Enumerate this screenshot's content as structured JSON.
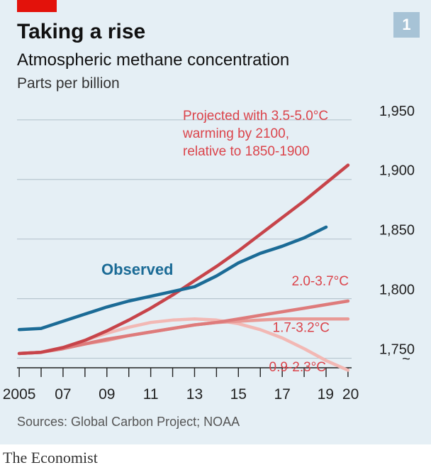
{
  "header": {
    "title": "Taking a rise",
    "subtitle": "Atmospheric methane concentration",
    "unit": "Parts per billion",
    "badge": "1"
  },
  "footer": {
    "source": "Sources: Global Carbon Project; NOAA",
    "brand": "The Economist"
  },
  "colors": {
    "observed": "#1b6b96",
    "projected_high": "#c7444a",
    "projected_mid": "#de7b7b",
    "projected_low": "#e89a96",
    "projected_lowest": "#f2b8b4",
    "label_red": "#db444b",
    "background": "#e5eff5",
    "grid": "#b7c6cf",
    "brand_red": "#e3120b"
  },
  "chart_data": {
    "type": "line",
    "x_tick_labels": [
      "2005",
      "07",
      "09",
      "11",
      "13",
      "15",
      "17",
      "19",
      "20"
    ],
    "x_tick_years": [
      2005,
      2007,
      2009,
      2011,
      2013,
      2015,
      2017,
      2019,
      2020
    ],
    "y_ticks": [
      1750,
      1800,
      1850,
      1900,
      1950
    ],
    "y_tick_labels": [
      "1,750",
      "1,800",
      "1,850",
      "1,900",
      "1,950"
    ],
    "xlim": [
      2004.9,
      2020.1
    ],
    "ylim": [
      1742,
      1960
    ],
    "axis_break_symbol": "~",
    "series": [
      {
        "name": "Projected with 3.5-5.0°C warming by 2100, relative to 1850-1900",
        "color_key": "projected_high",
        "x": [
          2005,
          2006,
          2007,
          2008,
          2009,
          2010,
          2011,
          2012,
          2013,
          2014,
          2015,
          2016,
          2017,
          2018,
          2019,
          2020
        ],
        "values": [
          1754,
          1755,
          1759,
          1765,
          1773,
          1782,
          1792,
          1803,
          1815,
          1827,
          1840,
          1854,
          1868,
          1882,
          1897,
          1912
        ]
      },
      {
        "name": "2.0-3.7°C",
        "color_key": "projected_mid",
        "x": [
          2005,
          2006,
          2007,
          2008,
          2009,
          2010,
          2011,
          2012,
          2013,
          2014,
          2015,
          2016,
          2017,
          2018,
          2019,
          2020
        ],
        "values": [
          1754,
          1755,
          1758,
          1762,
          1766,
          1769,
          1772,
          1775,
          1778,
          1780,
          1783,
          1786,
          1789,
          1792,
          1795,
          1798
        ]
      },
      {
        "name": "1.7-3.2°C",
        "color_key": "projected_low",
        "x": [
          2005,
          2006,
          2007,
          2008,
          2009,
          2010,
          2011,
          2012,
          2013,
          2014,
          2015,
          2016,
          2017,
          2018,
          2019,
          2020
        ],
        "values": [
          1754,
          1755,
          1758,
          1762,
          1765,
          1769,
          1772,
          1775,
          1778,
          1780,
          1781,
          1782,
          1783,
          1783,
          1783,
          1783
        ]
      },
      {
        "name": "0.9-2.3°C",
        "color_key": "projected_lowest",
        "x": [
          2005,
          2006,
          2007,
          2008,
          2009,
          2010,
          2011,
          2012,
          2013,
          2014,
          2015,
          2016,
          2017,
          2018,
          2019,
          2020
        ],
        "values": [
          1754,
          1755,
          1759,
          1765,
          1771,
          1776,
          1780,
          1782,
          1783,
          1782,
          1779,
          1774,
          1767,
          1758,
          1748,
          1740
        ]
      },
      {
        "name": "Observed",
        "color_key": "observed",
        "x": [
          2005,
          2006,
          2007,
          2008,
          2009,
          2010,
          2011,
          2012,
          2013,
          2014,
          2015,
          2016,
          2017,
          2018,
          2019
        ],
        "values": [
          1774,
          1775,
          1781,
          1787,
          1793,
          1798,
          1802,
          1806,
          1810,
          1819,
          1830,
          1838,
          1844,
          1851,
          1860
        ]
      }
    ],
    "annotations": [
      {
        "series": 0,
        "lines": [
          "Projected with 3.5-5.0°C",
          "warming by 2100,",
          "relative to 1850-1900"
        ],
        "x": 2004.9,
        "y": 1950,
        "color_key": "label_red"
      },
      {
        "series": 4,
        "lines": [
          "Observed"
        ],
        "x": 2009.1,
        "y": 1820,
        "color_key": "observed"
      },
      {
        "series": 1,
        "lines": [
          "2.0-3.7°C"
        ],
        "x": 2019.9,
        "y": 1811,
        "color_key": "label_red"
      },
      {
        "series": 2,
        "lines": [
          "1.7-3.2°C"
        ],
        "x": 2019.1,
        "y": 1772,
        "color_key": "label_red"
      },
      {
        "series": 3,
        "lines": [
          "0.9-2.3°C"
        ],
        "x": 2018.5,
        "y": 1739,
        "color_key": "label_red"
      }
    ]
  }
}
